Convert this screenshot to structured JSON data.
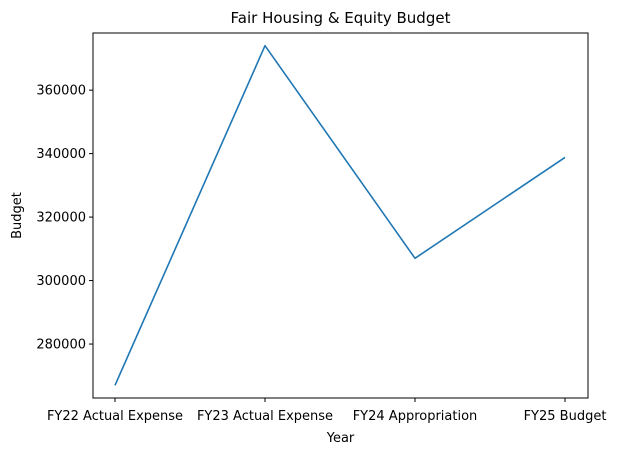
{
  "chart_data": {
    "type": "line",
    "title": "Fair Housing & Equity Budget",
    "xlabel": "Year",
    "ylabel": "Budget",
    "categories": [
      "FY22 Actual Expense",
      "FY23 Actual Expense",
      "FY24 Appropriation",
      "FY25 Budget"
    ],
    "series": [
      {
        "values": [
          267000,
          374000,
          307000,
          338800
        ],
        "color": "#1f77b4"
      }
    ],
    "ylim": [
      263000,
      378000
    ],
    "yticks": [
      280000,
      300000,
      320000,
      340000,
      360000
    ],
    "ytick_labels": [
      "280000",
      "300000",
      "320000",
      "340000",
      "360000"
    ],
    "grid": false,
    "legend": "none"
  }
}
